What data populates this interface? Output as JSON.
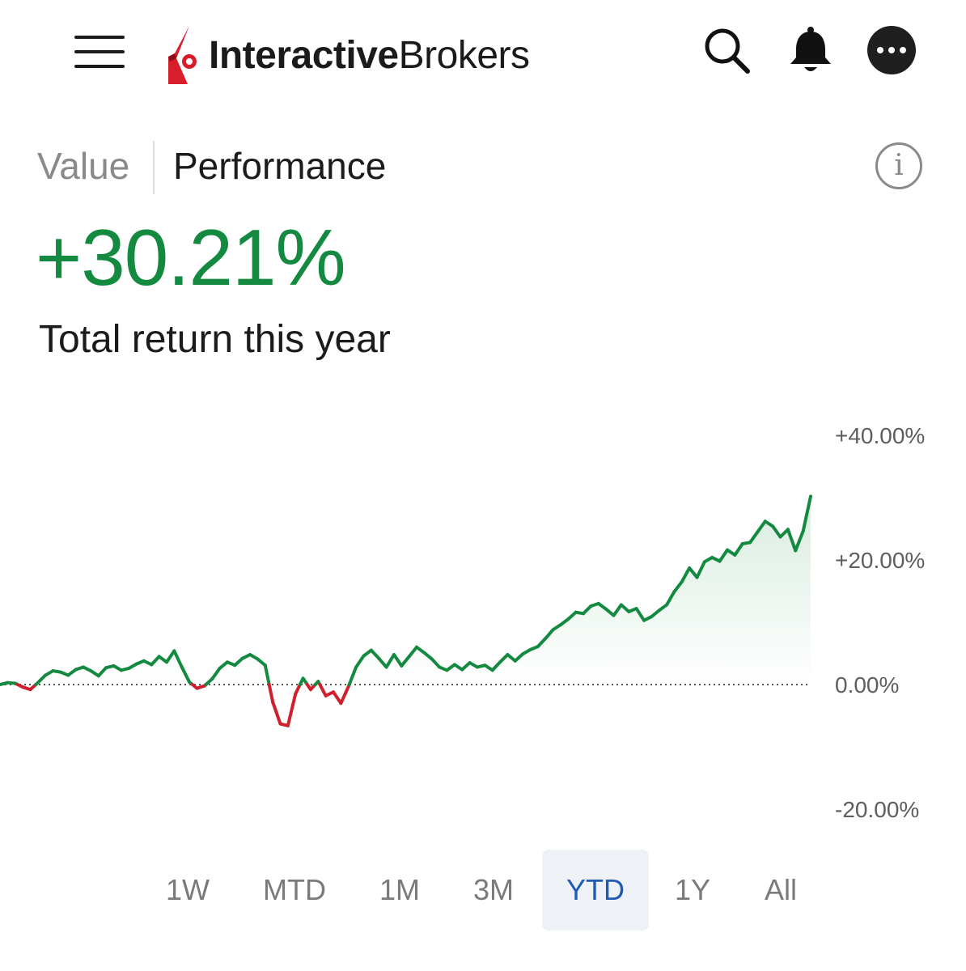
{
  "header": {
    "logo_bold": "Interactive",
    "logo_light": "Brokers",
    "icons": [
      "menu-icon",
      "search-icon",
      "bell-icon",
      "more-icon"
    ]
  },
  "tabs": [
    {
      "label": "Value",
      "active": false
    },
    {
      "label": "Performance",
      "active": true
    }
  ],
  "summary": {
    "return_value": "+30.21%",
    "caption": "Total return this year"
  },
  "colors": {
    "positive": "#138a3f",
    "negative": "#d0202e",
    "active_range": "#1f5ab5",
    "brand_red": "#d81e2b"
  },
  "chart_data": {
    "type": "line",
    "y_unit": "%",
    "ylim": [
      -20,
      40
    ],
    "y_ticks": [
      {
        "value": 40,
        "label": "+40.00%"
      },
      {
        "value": 20,
        "label": "+20.00%"
      },
      {
        "value": 0,
        "label": "0.00%"
      },
      {
        "value": -20,
        "label": "-20.00%"
      }
    ],
    "baseline": 0,
    "series": [
      {
        "values": [
          0.0,
          0.3,
          0.2,
          -0.4,
          -0.8,
          0.3,
          1.5,
          2.2,
          2.0,
          1.5,
          2.4,
          2.8,
          2.2,
          1.4,
          2.7,
          3.0,
          2.3,
          2.6,
          3.3,
          3.8,
          3.2,
          4.5,
          3.6,
          5.4,
          2.8,
          0.4,
          -0.6,
          -0.2,
          0.9,
          2.6,
          3.6,
          3.1,
          4.2,
          4.8,
          4.1,
          3.1,
          -2.8,
          -6.3,
          -6.6,
          -1.5,
          1.0,
          -0.8,
          0.5,
          -1.8,
          -1.2,
          -3.0,
          -0.3,
          2.8,
          4.6,
          5.5,
          4.2,
          2.8,
          4.8,
          3.0,
          4.5,
          6.0,
          5.1,
          4.1,
          2.8,
          2.3,
          3.2,
          2.4,
          3.5,
          2.8,
          3.1,
          2.3,
          3.6,
          4.8,
          3.8,
          4.9,
          5.6,
          6.1,
          7.4,
          8.8,
          9.6,
          10.5,
          11.6,
          11.4,
          12.6,
          13.0,
          12.1,
          11.1,
          12.8,
          11.7,
          12.2,
          10.3,
          10.9,
          11.9,
          12.8,
          14.9,
          16.5,
          18.7,
          17.2,
          19.7,
          20.4,
          19.8,
          21.6,
          20.8,
          22.6,
          22.8,
          24.5,
          26.2,
          25.4,
          23.7,
          24.9,
          21.5,
          24.6,
          30.21
        ]
      }
    ]
  },
  "ranges": [
    {
      "label": "1W",
      "active": false
    },
    {
      "label": "MTD",
      "active": false
    },
    {
      "label": "1M",
      "active": false
    },
    {
      "label": "3M",
      "active": false
    },
    {
      "label": "YTD",
      "active": true
    },
    {
      "label": "1Y",
      "active": false
    },
    {
      "label": "All",
      "active": false
    }
  ]
}
